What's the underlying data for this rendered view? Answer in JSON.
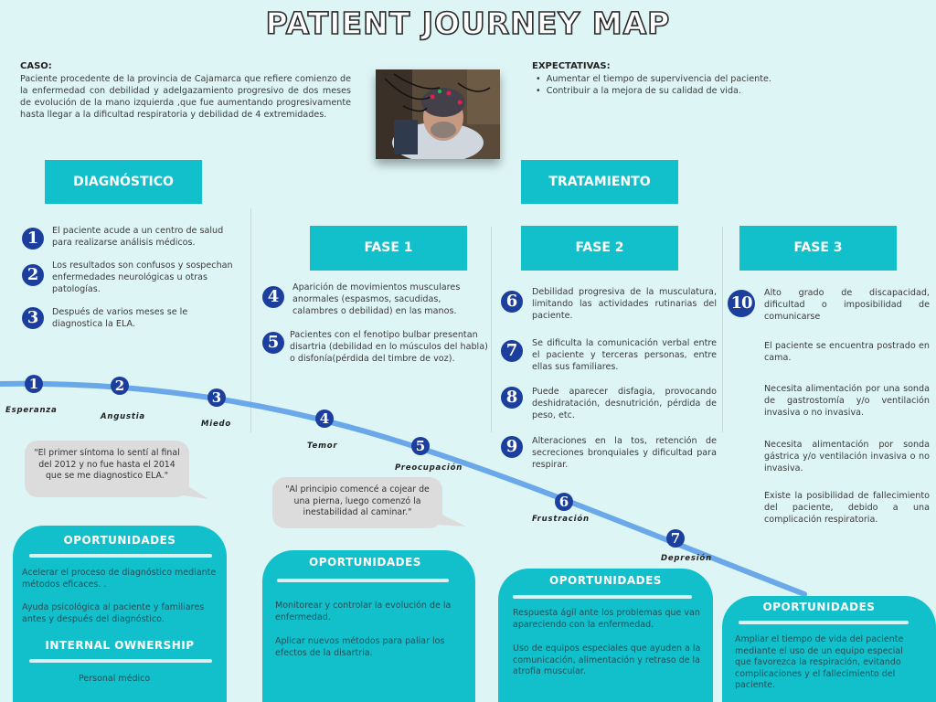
{
  "title": "PATIENT JOURNEY MAP",
  "caso": {
    "label": "CASO:",
    "text": "Paciente procedente de la provincia de Cajamarca que refiere comienzo de la enfermedad con debilidad y adelgazamiento progresivo de dos meses de evolución de la mano izquierda ,que fue aumentando progresivamente hasta llegar a la dificultad respiratoria y debilidad de 4 extremidades."
  },
  "expectativas": {
    "label": "EXPECTATIVAS:",
    "items": [
      "Aumentar el tiempo de supervivencia del paciente.",
      "Contribuir a la mejora de su calidad de vida."
    ]
  },
  "sections": {
    "diagnostico": "DIAGNÓSTICO",
    "tratamiento": "TRATAMIENTO"
  },
  "phases": [
    "FASE 1",
    "FASE 2",
    "FASE 3"
  ],
  "steps": [
    {
      "num": "1",
      "text": "El paciente acude a un centro de salud para realizarse análisis médicos."
    },
    {
      "num": "2",
      "text": "Los resultados son confusos y sospechan enfermedades neurológicas u otras patologías."
    },
    {
      "num": "3",
      "text": "Después de varios meses se le diagnostica la ELA."
    },
    {
      "num": "4",
      "text": "Aparición de movimientos musculares anormales (espasmos, sacudidas, calambres o debilidad) en las manos."
    },
    {
      "num": "5",
      "text": "Pacientes con el fenotipo bulbar presentan disartria (debilidad en lo músculos del habla) o disfonía(pérdida del timbre de voz)."
    },
    {
      "num": "6",
      "text": "Debilidad progresiva de la musculatura, limitando las actividades rutinarias del paciente."
    },
    {
      "num": "7",
      "text": "Se dificulta la comunicación verbal entre el paciente y terceras personas, entre ellas sus familiares."
    },
    {
      "num": "8",
      "text": "Puede aparecer disfagia, provocando deshidratación, desnutrición, pérdida de peso, etc."
    },
    {
      "num": "9",
      "text": "Alteraciones en la tos, retención de secreciones bronquiales y dificultad para respirar."
    },
    {
      "num": "10",
      "text": "Alto grado de discapacidad, dificultad o imposibilidad de comunicarse"
    }
  ],
  "phase3_notes": [
    "El paciente se encuentra postrado en cama.",
    "Necesita alimentación por una sonda de gastrostomía y/o ventilación invasiva o no invasiva.",
    "Necesita alimentación por sonda gástrica y/o ventilación invasiva o no invasiva.",
    "Existe la posibilidad de fallecimiento del paciente, debido a una complicación respiratoria."
  ],
  "emotions": [
    {
      "num": "1",
      "label": "Esperanza"
    },
    {
      "num": "2",
      "label": "Angustia"
    },
    {
      "num": "3",
      "label": "Miedo"
    },
    {
      "num": "4",
      "label": "Temor"
    },
    {
      "num": "5",
      "label": "Preocupación"
    },
    {
      "num": "6",
      "label": "Frustración"
    },
    {
      "num": "7",
      "label": "Depresión"
    }
  ],
  "quotes": [
    "\"El primer síntoma lo sentí al final del 2012 y no fue hasta el 2014 que se me diagnostico ELA.\"",
    "\"Al principio comencé a cojear de una pierna, luego comenzó la inestabilidad al caminar.\""
  ],
  "opportunities": [
    {
      "title": "OPORTUNIDADES",
      "items": [
        "Acelerar el proceso de diagnóstico mediante métodos eficaces. .",
        "Ayuda psicológica al paciente y familiares antes y después del diagnóstico."
      ]
    },
    {
      "title": "OPORTUNIDADES",
      "items": [
        "Monitorear y controlar la evolución de la enfermedad.",
        "Aplicar nuevos métodos para paliar los efectos de la disartria."
      ]
    },
    {
      "title": "OPORTUNIDADES",
      "items": [
        "Respuesta ágil ante los problemas que van apareciendo con la enfermedad.",
        "Uso de equipos especiales que ayuden a la comunicación, alimentación y retraso de la atrofia muscular."
      ]
    },
    {
      "title": "OPORTUNIDADES",
      "items": [
        "Ampliar el tiempo de vida del paciente mediante el uso de un equipo especial que favorezca la respiración, evitando complicaciones y el fallecimiento del paciente."
      ]
    }
  ],
  "ownership": {
    "title": "INTERNAL OWNERSHIP",
    "text": "Personal médico"
  },
  "colors": {
    "background": "#def5f6",
    "accent": "#12c0cc",
    "number": "#1c3f9e",
    "curve": "#6aa8ea",
    "bubble": "#dddcdc"
  }
}
